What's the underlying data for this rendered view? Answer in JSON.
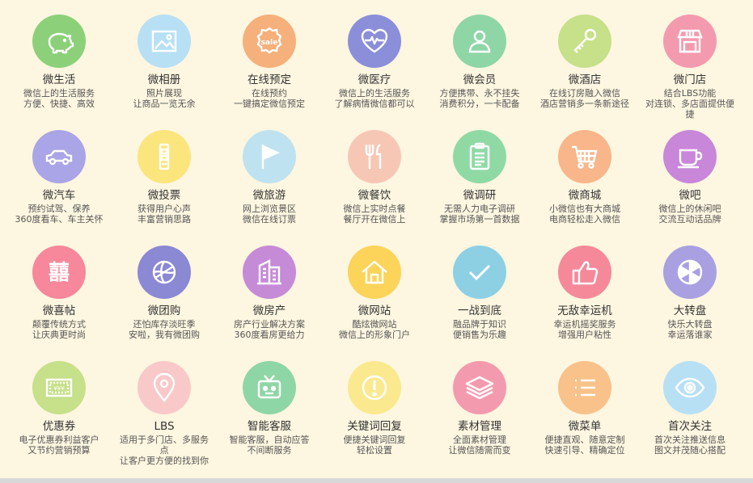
{
  "features": [
    {
      "title": "微生活",
      "desc": "微信上的生活服务\n方便、快捷、高效",
      "color": "#8cd17a",
      "icon": "piggy-bank-icon"
    },
    {
      "title": "微相册",
      "desc": "照片展现\n让商品一览无余",
      "color": "#b7e0f4",
      "icon": "photo-icon"
    },
    {
      "title": "在线预定",
      "desc": "在线预约\n一键搞定微信预定",
      "color": "#f5b07b",
      "icon": "sale-badge-icon"
    },
    {
      "title": "微医疗",
      "desc": "微信上的生活服务\n了解病情微信都可以",
      "color": "#8b8fd9",
      "icon": "heartbeat-icon"
    },
    {
      "title": "微会员",
      "desc": "方便携带、永不挂失\n消费积分，一卡配备",
      "color": "#8fd6a6",
      "icon": "user-icon"
    },
    {
      "title": "微酒店",
      "desc": "在线订房融入微信\n酒店营销多一条新途径",
      "color": "#c7e08a",
      "icon": "key-icon"
    },
    {
      "title": "微门店",
      "desc": "结合LBS功能\n对连锁、多店面提供便捷",
      "color": "#f49aae",
      "icon": "store-icon"
    },
    {
      "title": "微汽车",
      "desc": "预约试驾、保养\n360度看车、车主关怀",
      "color": "#a9a5e6",
      "icon": "car-icon"
    },
    {
      "title": "微投票",
      "desc": "获得用户心声\n丰富营销思路",
      "color": "#fbe57d",
      "icon": "vote-icon"
    },
    {
      "title": "微旅游",
      "desc": "网上浏览景区\n微信在线订票",
      "color": "#bfe2f0",
      "icon": "flag-icon"
    },
    {
      "title": "微餐饮",
      "desc": "微信上实时点餐\n餐厅开在微信上",
      "color": "#f7c7b5",
      "icon": "fork-knife-icon"
    },
    {
      "title": "微调研",
      "desc": "无需人力电子调研\n掌握市场第一首数据",
      "color": "#8fd9a5",
      "icon": "clipboard-icon"
    },
    {
      "title": "微商城",
      "desc": "小微信也有大商城\n电商轻松走入微信",
      "color": "#f8b68a",
      "icon": "cart-icon"
    },
    {
      "title": "微吧",
      "desc": "微信上的休闲吧\n交流互动话品牌",
      "color": "#c887d9",
      "icon": "coffee-cup-icon"
    },
    {
      "title": "微喜帖",
      "desc": "颠覆传统方式\n让庆典更时尚",
      "color": "#f7879b",
      "icon": "double-happiness-icon"
    },
    {
      "title": "微团购",
      "desc": "还怕库存淡旺季\n安啦，我有微团购",
      "color": "#8b88d4",
      "icon": "basketball-icon"
    },
    {
      "title": "微房产",
      "desc": "房产行业解决方案\n360度看房更给力",
      "color": "#c58bd6",
      "icon": "building-icon"
    },
    {
      "title": "微网站",
      "desc": "酷炫微网站\n微信上的形象门户",
      "color": "#fcd45a",
      "icon": "home-icon"
    },
    {
      "title": "一战到底",
      "desc": "融品牌于知识\n便销售为乐趣",
      "color": "#8dd0e4",
      "icon": "checkmark-icon"
    },
    {
      "title": "无敌幸运机",
      "desc": "幸运机摇奖服务\n增强用户粘性",
      "color": "#f5899a",
      "icon": "thumbs-up-icon"
    },
    {
      "title": "大转盘",
      "desc": "快乐大转盘\n幸运落谁家",
      "color": "#a9a0e2",
      "icon": "wheel-icon"
    },
    {
      "title": "优惠券",
      "desc": "电子优惠券利益客户\n又节约营销预算",
      "color": "#c7e08a",
      "icon": "coupon-icon"
    },
    {
      "title": "LBS",
      "desc": "适用于多门店、多服务点\n让客户更方便的找到你",
      "color": "#f9c9c9",
      "icon": "location-pin-icon"
    },
    {
      "title": "智能客服",
      "desc": "智能客服，自动应答\n不间断服务",
      "color": "#8fd6a6",
      "icon": "robot-tv-icon"
    },
    {
      "title": "关键词回复",
      "desc": "便捷关键词回复\n轻松设置",
      "color": "#fbe990",
      "icon": "exclamation-icon"
    },
    {
      "title": "素材管理",
      "desc": "全面素材管理\n让微信随需而变",
      "color": "#f49aae",
      "icon": "stack-icon"
    },
    {
      "title": "微菜单",
      "desc": "便捷直观、随意定制\n快速引导、精确定位",
      "color": "#f8c28a",
      "icon": "list-icon"
    },
    {
      "title": "首次关注",
      "desc": "首次关注推送信息\n图文并茂随心搭配",
      "color": "#b7e0f4",
      "icon": "eye-icon"
    }
  ]
}
